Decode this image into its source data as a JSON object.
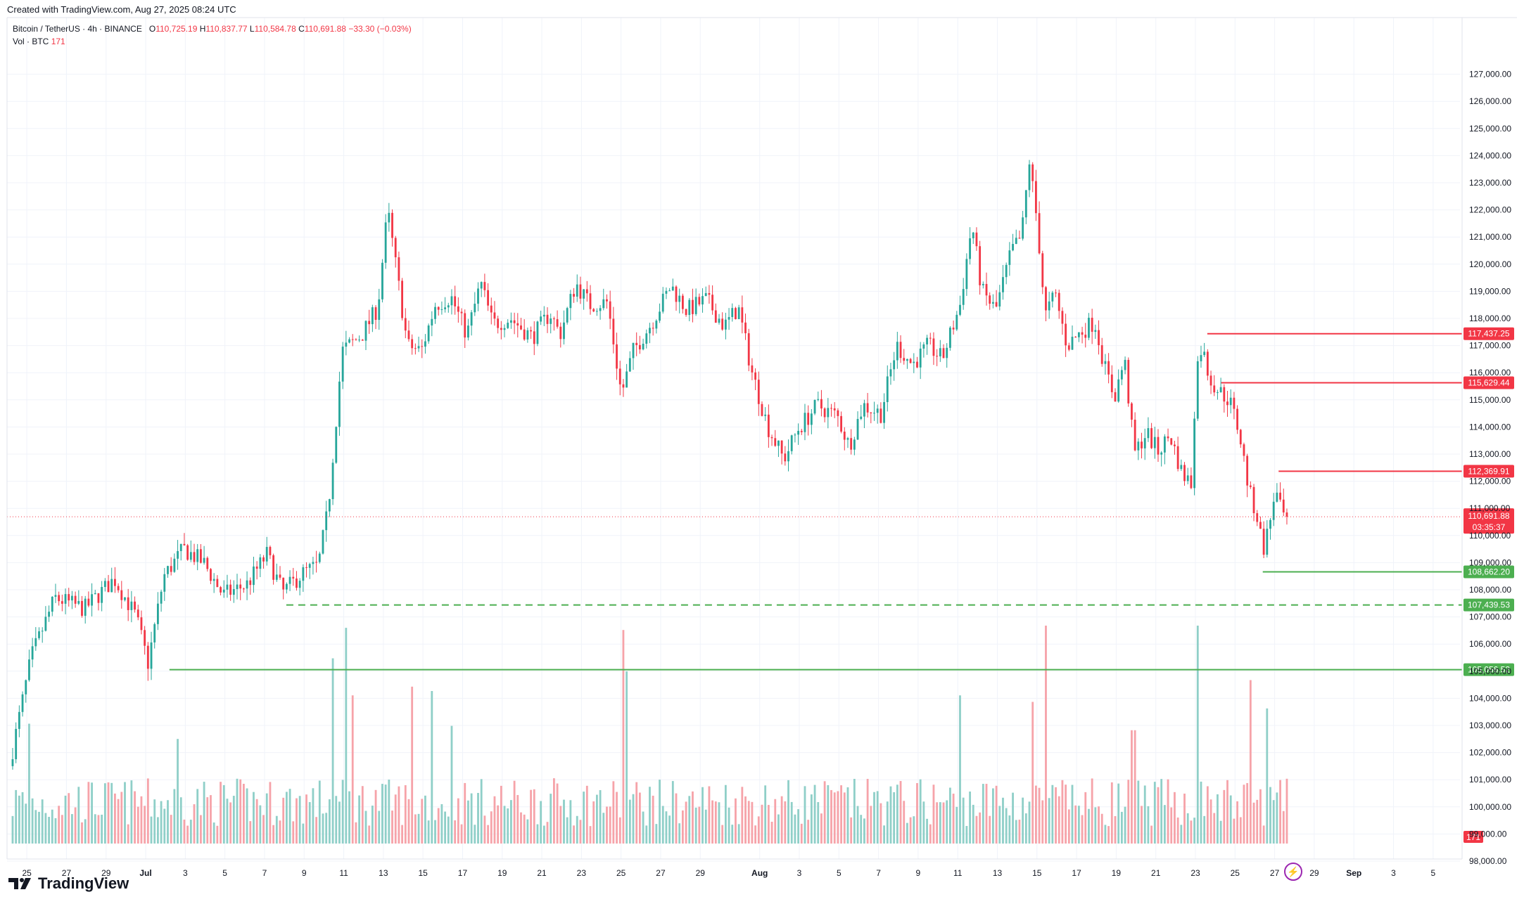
{
  "header": {
    "created_with": "Created with TradingView.com, Aug 27, 2025 08:24 UTC",
    "symbol": "Bitcoin / TetherUS · 4h · BINANCE",
    "open_label": "O",
    "open": "110,725.19",
    "high_label": "H",
    "high": "110,837.77",
    "low_label": "L",
    "low": "110,584.78",
    "close_label": "C",
    "close": "110,691.88",
    "change": "−33.30 (−0.03%)",
    "vol_label": "Vol · BTC",
    "vol_value": "171"
  },
  "branding": {
    "logo_text": "TradingView",
    "logo_icon": "tradingview-logo-icon"
  },
  "countdown_icon": "lightning-icon",
  "colors": {
    "up": "#26a69a",
    "down": "#f23645",
    "up_vol": "#8fcfc8",
    "down_vol": "#f6a3a9",
    "support": "#4caf50",
    "resistance": "#f23645",
    "grid": "#f0f3fa"
  },
  "chart_data": {
    "type": "candlestick",
    "timeframe": "4h",
    "ylim": [
      96800,
      127400
    ],
    "y_ticks": [
      98000,
      99000,
      100000,
      101000,
      102000,
      103000,
      104000,
      105000,
      106000,
      107000,
      108000,
      109000,
      110000,
      111000,
      112000,
      113000,
      114000,
      115000,
      116000,
      117000,
      118000,
      119000,
      120000,
      121000,
      122000,
      123000,
      124000,
      125000,
      126000,
      127000
    ],
    "y_tick_labels": [
      "98,000.00",
      "99,000.00",
      "100,000.00",
      "101,000.00",
      "102,000.00",
      "103,000.00",
      "104,000.00",
      "105,000.00",
      "106,000.00",
      "107,000.00",
      "108,000.00",
      "109,000.00",
      "110,000.00",
      "111,000.00",
      "112,000.00",
      "113,000.00",
      "114,000.00",
      "115,000.00",
      "116,000.00",
      "117,000.00",
      "118,000.00",
      "119,000.00",
      "120,000.00",
      "121,000.00",
      "122,000.00",
      "123,000.00",
      "124,000.00",
      "125,000.00",
      "126,000.00",
      "127,000.00"
    ],
    "x_ticks": [
      {
        "label": "25",
        "day": 25
      },
      {
        "label": "27",
        "day": 27
      },
      {
        "label": "29",
        "day": 29
      },
      {
        "label": "Jul",
        "day": 31
      },
      {
        "label": "3",
        "day": 33
      },
      {
        "label": "5",
        "day": 35
      },
      {
        "label": "7",
        "day": 37
      },
      {
        "label": "9",
        "day": 39
      },
      {
        "label": "11",
        "day": 41
      },
      {
        "label": "13",
        "day": 43
      },
      {
        "label": "15",
        "day": 45
      },
      {
        "label": "17",
        "day": 47
      },
      {
        "label": "19",
        "day": 49
      },
      {
        "label": "21",
        "day": 51
      },
      {
        "label": "23",
        "day": 53
      },
      {
        "label": "25",
        "day": 55
      },
      {
        "label": "27",
        "day": 57
      },
      {
        "label": "29",
        "day": 59
      },
      {
        "label": "Aug",
        "day": 62
      },
      {
        "label": "3",
        "day": 64
      },
      {
        "label": "5",
        "day": 66
      },
      {
        "label": "7",
        "day": 68
      },
      {
        "label": "9",
        "day": 70
      },
      {
        "label": "11",
        "day": 72
      },
      {
        "label": "13",
        "day": 74
      },
      {
        "label": "15",
        "day": 76
      },
      {
        "label": "17",
        "day": 78
      },
      {
        "label": "19",
        "day": 80
      },
      {
        "label": "21",
        "day": 82
      },
      {
        "label": "23",
        "day": 84
      },
      {
        "label": "25",
        "day": 86
      },
      {
        "label": "27",
        "day": 88
      },
      {
        "label": "29",
        "day": 90
      },
      {
        "label": "Sep",
        "day": 92
      },
      {
        "label": "3",
        "day": 94
      },
      {
        "label": "5",
        "day": 96
      }
    ],
    "x_start_day": 24,
    "key_prices": [
      {
        "day": 24.2,
        "price": 101500
      },
      {
        "day": 25.3,
        "price": 105500
      },
      {
        "day": 26.5,
        "price": 107700
      },
      {
        "day": 28,
        "price": 107300
      },
      {
        "day": 29.5,
        "price": 108400
      },
      {
        "day": 30.6,
        "price": 107000
      },
      {
        "day": 31.2,
        "price": 105300
      },
      {
        "day": 32,
        "price": 108500
      },
      {
        "day": 33,
        "price": 109500
      },
      {
        "day": 34,
        "price": 109000
      },
      {
        "day": 35,
        "price": 107800
      },
      {
        "day": 36.2,
        "price": 108200
      },
      {
        "day": 37.2,
        "price": 109300
      },
      {
        "day": 38,
        "price": 107900
      },
      {
        "day": 39,
        "price": 108600
      },
      {
        "day": 39.8,
        "price": 108900
      },
      {
        "day": 40.3,
        "price": 111000
      },
      {
        "day": 41,
        "price": 116800
      },
      {
        "day": 42,
        "price": 117400
      },
      {
        "day": 42.8,
        "price": 118400
      },
      {
        "day": 43.3,
        "price": 122000
      },
      {
        "day": 43.8,
        "price": 119500
      },
      {
        "day": 44.3,
        "price": 117000
      },
      {
        "day": 45,
        "price": 116800
      },
      {
        "day": 45.7,
        "price": 118500
      },
      {
        "day": 46.5,
        "price": 118800
      },
      {
        "day": 47.3,
        "price": 117400
      },
      {
        "day": 48,
        "price": 119300
      },
      {
        "day": 48.6,
        "price": 117800
      },
      {
        "day": 49.5,
        "price": 118000
      },
      {
        "day": 50.6,
        "price": 117300
      },
      {
        "day": 51.5,
        "price": 118200
      },
      {
        "day": 52,
        "price": 117400
      },
      {
        "day": 52.8,
        "price": 119300
      },
      {
        "day": 53.5,
        "price": 118500
      },
      {
        "day": 54.4,
        "price": 118600
      },
      {
        "day": 55.1,
        "price": 115200
      },
      {
        "day": 55.7,
        "price": 116800
      },
      {
        "day": 56.6,
        "price": 117800
      },
      {
        "day": 57.6,
        "price": 119200
      },
      {
        "day": 58.4,
        "price": 118300
      },
      {
        "day": 59.4,
        "price": 118700
      },
      {
        "day": 60.3,
        "price": 117700
      },
      {
        "day": 61,
        "price": 118400
      },
      {
        "day": 61.7,
        "price": 116000
      },
      {
        "day": 62.5,
        "price": 114000
      },
      {
        "day": 63.3,
        "price": 112800
      },
      {
        "day": 64,
        "price": 113900
      },
      {
        "day": 65,
        "price": 114800
      },
      {
        "day": 66,
        "price": 114400
      },
      {
        "day": 66.6,
        "price": 113300
      },
      {
        "day": 67.3,
        "price": 114800
      },
      {
        "day": 68.2,
        "price": 114500
      },
      {
        "day": 69,
        "price": 117000
      },
      {
        "day": 69.8,
        "price": 116300
      },
      {
        "day": 70.6,
        "price": 117000
      },
      {
        "day": 71.3,
        "price": 116500
      },
      {
        "day": 72.2,
        "price": 118500
      },
      {
        "day": 72.8,
        "price": 121500
      },
      {
        "day": 73.3,
        "price": 119000
      },
      {
        "day": 74,
        "price": 118300
      },
      {
        "day": 74.8,
        "price": 120500
      },
      {
        "day": 75.3,
        "price": 121000
      },
      {
        "day": 75.7,
        "price": 123800
      },
      {
        "day": 76.1,
        "price": 121500
      },
      {
        "day": 76.5,
        "price": 118100
      },
      {
        "day": 77,
        "price": 118900
      },
      {
        "day": 77.6,
        "price": 117000
      },
      {
        "day": 78.3,
        "price": 117500
      },
      {
        "day": 79,
        "price": 117900
      },
      {
        "day": 79.5,
        "price": 116200
      },
      {
        "day": 80,
        "price": 115100
      },
      {
        "day": 80.5,
        "price": 116500
      },
      {
        "day": 81,
        "price": 113000
      },
      {
        "day": 81.6,
        "price": 113800
      },
      {
        "day": 82.2,
        "price": 113100
      },
      {
        "day": 82.8,
        "price": 113700
      },
      {
        "day": 83.4,
        "price": 112300
      },
      {
        "day": 83.9,
        "price": 111900
      },
      {
        "day": 84.1,
        "price": 116000
      },
      {
        "day": 84.4,
        "price": 117000
      },
      {
        "day": 84.8,
        "price": 115800
      },
      {
        "day": 85.3,
        "price": 115300
      },
      {
        "day": 85.8,
        "price": 115000
      },
      {
        "day": 86.3,
        "price": 113800
      },
      {
        "day": 86.8,
        "price": 111600
      },
      {
        "day": 87.2,
        "price": 110700
      },
      {
        "day": 87.5,
        "price": 109500
      },
      {
        "day": 87.8,
        "price": 110300
      },
      {
        "day": 88.1,
        "price": 111700
      },
      {
        "day": 88.4,
        "price": 110900
      },
      {
        "day": 88.55,
        "price": 110691.88
      }
    ],
    "horizontal_levels": [
      {
        "price": 117437.25,
        "label": "117,437.25",
        "color": "red",
        "style": "solid",
        "start_day": 84.6
      },
      {
        "price": 115629.44,
        "label": "115,629.44",
        "color": "red",
        "style": "solid",
        "start_day": 85.3
      },
      {
        "price": 112369.91,
        "label": "112,369.91",
        "color": "red",
        "style": "solid",
        "start_day": 88.2
      },
      {
        "price": 108662.2,
        "label": "108,662.20",
        "color": "green",
        "style": "solid",
        "start_day": 87.4
      },
      {
        "price": 107439.53,
        "label": "107,439.53",
        "color": "green",
        "style": "dashed",
        "start_day": 38.1
      },
      {
        "price": 105056.52,
        "label": "105,056.52",
        "color": "green",
        "style": "solid",
        "start_day": 32.2
      }
    ],
    "last_price": {
      "price": 110691.88,
      "label": "110,691.88",
      "countdown": "03:35:37"
    },
    "volume_last": {
      "label": "171"
    },
    "volume_spikes": [
      {
        "day": 25.1,
        "vol": 0.55
      },
      {
        "day": 32.5,
        "vol": 0.48
      },
      {
        "day": 40.3,
        "vol": 0.85
      },
      {
        "day": 41,
        "vol": 0.99
      },
      {
        "day": 41.3,
        "vol": 0.68
      },
      {
        "day": 44.3,
        "vol": 0.72
      },
      {
        "day": 45.3,
        "vol": 0.7
      },
      {
        "day": 46.4,
        "vol": 0.54
      },
      {
        "day": 55,
        "vol": 0.98
      },
      {
        "day": 55.2,
        "vol": 0.79
      },
      {
        "day": 72,
        "vol": 0.68
      },
      {
        "day": 75.7,
        "vol": 0.65
      },
      {
        "day": 76.3,
        "vol": 1.0
      },
      {
        "day": 80.8,
        "vol": 0.52
      },
      {
        "day": 84.1,
        "vol": 1.0
      },
      {
        "day": 86.7,
        "vol": 0.75
      },
      {
        "day": 87.6,
        "vol": 0.62
      }
    ],
    "grid": true
  }
}
